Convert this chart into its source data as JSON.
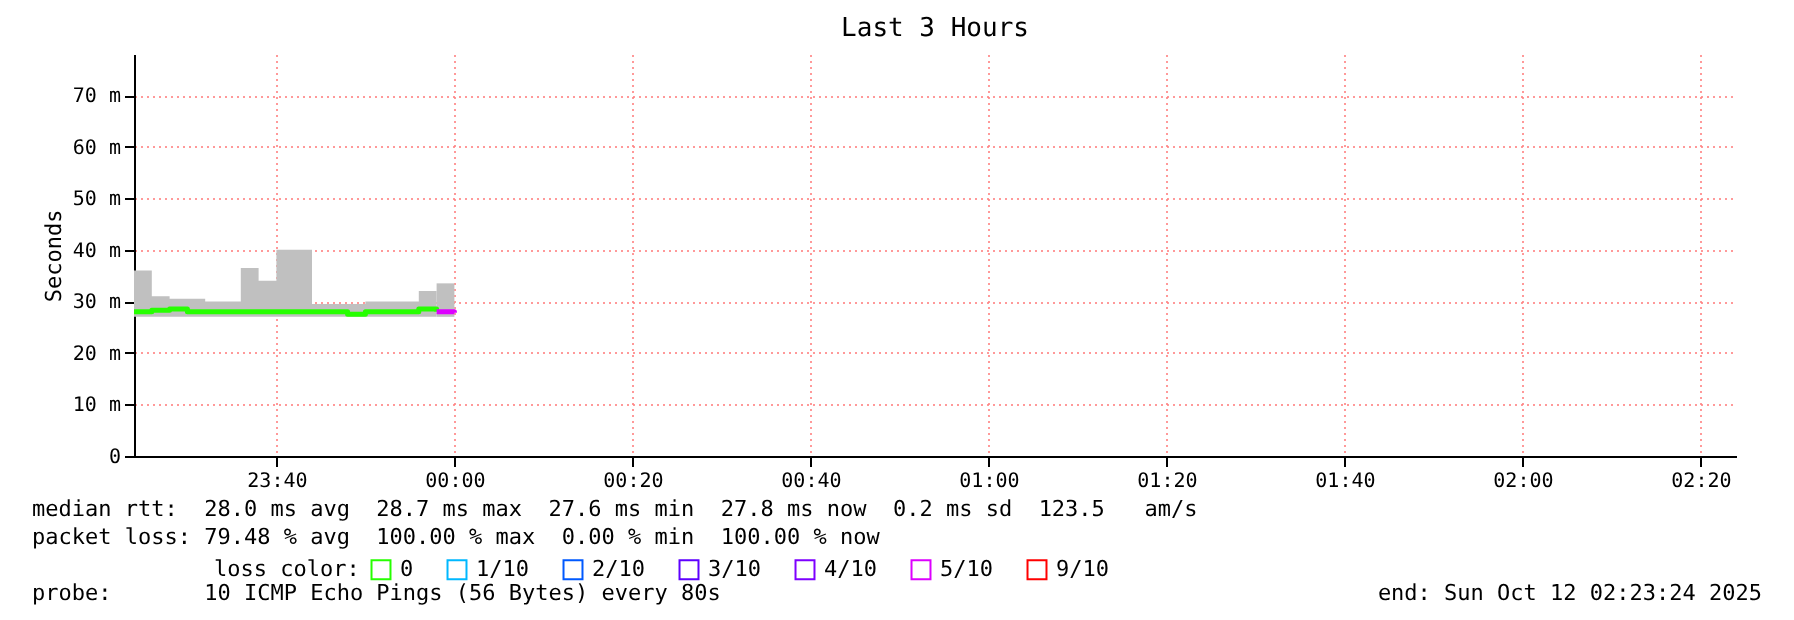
{
  "chart_data": {
    "type": "line",
    "title": "Last 3 Hours",
    "ylabel": "Seconds",
    "xlim": [
      "2025-10-11T23:24",
      "2025-10-12T02:24"
    ],
    "xticks": [
      {
        "value": "2025-10-11T23:40",
        "label": "23:40"
      },
      {
        "value": "2025-10-12T00:00",
        "label": "00:00"
      },
      {
        "value": "2025-10-12T00:20",
        "label": "00:20"
      },
      {
        "value": "2025-10-12T00:40",
        "label": "00:40"
      },
      {
        "value": "2025-10-12T01:00",
        "label": "01:00"
      },
      {
        "value": "2025-10-12T01:20",
        "label": "01:20"
      },
      {
        "value": "2025-10-12T01:40",
        "label": "01:40"
      },
      {
        "value": "2025-10-12T02:00",
        "label": "02:00"
      },
      {
        "value": "2025-10-12T02:20",
        "label": "02:20"
      }
    ],
    "ylim": [
      0,
      78
    ],
    "yticks": [
      0,
      {
        "value": 10,
        "label": "10 m"
      },
      {
        "value": 20,
        "label": "20 m"
      },
      {
        "value": 30,
        "label": "30 m"
      },
      {
        "value": 40,
        "label": "40 m"
      },
      {
        "value": 50,
        "label": "50 m"
      },
      {
        "value": 60,
        "label": "60 m"
      },
      {
        "value": 70,
        "label": "70 m"
      }
    ],
    "grid": true,
    "legend": "bottom",
    "legend_title": "loss color:",
    "series": [
      {
        "name": "0",
        "color": "#26ff00",
        "x": [
          "2025-10-11T23:24",
          "2025-10-11T23:26",
          "2025-10-11T23:28",
          "2025-10-11T23:30",
          "2025-10-11T23:32",
          "2025-10-11T23:34",
          "2025-10-11T23:36",
          "2025-10-11T23:38",
          "2025-10-11T23:40",
          "2025-10-11T23:42",
          "2025-10-11T23:44",
          "2025-10-11T23:46",
          "2025-10-11T23:48",
          "2025-10-11T23:50",
          "2025-10-11T23:52",
          "2025-10-11T23:54",
          "2025-10-11T23:56",
          "2025-10-11T23:58"
        ],
        "values": [
          28,
          28.3,
          28.5,
          28,
          28,
          28,
          28,
          28,
          28,
          28,
          28,
          28,
          27.5,
          28,
          28,
          28,
          28.5,
          28
        ],
        "lower": [
          27,
          27,
          27,
          27,
          27,
          27,
          27,
          27,
          27,
          27,
          27,
          27,
          27,
          27,
          27,
          27,
          27,
          27
        ],
        "upper": [
          36,
          31,
          30.5,
          30.5,
          30,
          30,
          36.5,
          34,
          40,
          40,
          29.5,
          29.5,
          29.5,
          30,
          30,
          30,
          32,
          33.5
        ]
      },
      {
        "name": "1/10",
        "color": "#00b8ff"
      },
      {
        "name": "2/10",
        "color": "#0059ff"
      },
      {
        "name": "3/10",
        "color": "#5e00ff"
      },
      {
        "name": "4/10",
        "color": "#7e00ff"
      },
      {
        "name": "5/10",
        "color": "#dd00ff",
        "x": [
          "2025-10-11T23:58",
          "2025-10-12T00:00"
        ],
        "values": [
          28,
          27.8
        ],
        "lower": [
          27,
          27
        ],
        "upper": [
          33.5,
          30
        ]
      },
      {
        "name": "9/10",
        "color": "#ff0000"
      }
    ],
    "annotations": [
      "median rtt:  28.0 ms avg  28.7 ms max  27.6 ms min  27.8 ms now  0.2 ms sd  123.5   am/s",
      "packet loss: 79.48 % avg  100.00 % max  0.00 % min  100.00 % now",
      "probe:       10 ICMP Echo Pings (56 Bytes) every 80s",
      "end: Sun Oct 12 02:23:24 2025"
    ]
  }
}
